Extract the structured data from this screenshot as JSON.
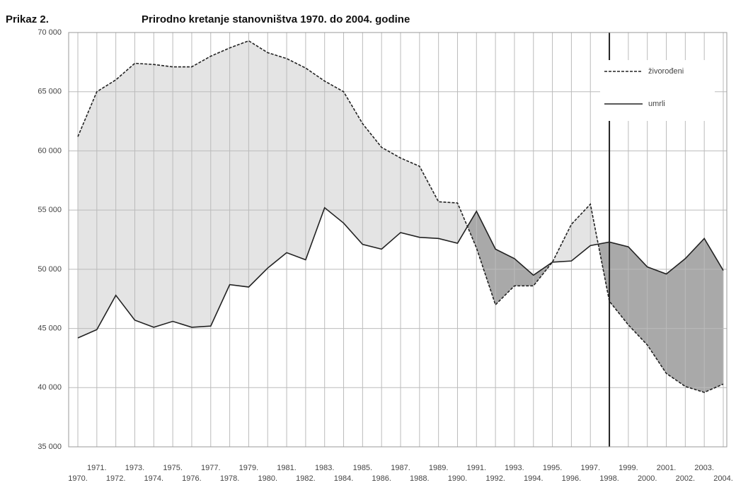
{
  "chart_data": {
    "type": "line",
    "label": "Prikaz 2.",
    "title": "Prirodno kretanje stanovništva 1970. do 2004. godine",
    "categories": [
      "1970.",
      "1971.",
      "1972.",
      "1973.",
      "1974.",
      "1975.",
      "1976.",
      "1977.",
      "1978.",
      "1979.",
      "1980.",
      "1981.",
      "1982.",
      "1983.",
      "1984.",
      "1985.",
      "1986.",
      "1987.",
      "1988.",
      "1989.",
      "1990.",
      "1991.",
      "1992.",
      "1993.",
      "1994.",
      "1995.",
      "1996.",
      "1997.",
      "1998.",
      "1999.",
      "2000.",
      "2001.",
      "2002.",
      "2003.",
      "2004."
    ],
    "series": [
      {
        "name": "živorođeni",
        "color": "#222222",
        "dash": true,
        "values": [
          61200,
          65000,
          66000,
          67400,
          67300,
          67100,
          67100,
          68000,
          68700,
          69300,
          68300,
          67800,
          67000,
          65900,
          65000,
          62300,
          60300,
          59400,
          58700,
          55700,
          55600,
          51800,
          47000,
          48600,
          48600,
          50600,
          53800,
          55500,
          47300,
          45300,
          43600,
          41200,
          40100,
          39600,
          40300
        ]
      },
      {
        "name": "umrli",
        "color": "#222222",
        "dash": false,
        "values": [
          44200,
          44900,
          47800,
          45700,
          45100,
          45600,
          45100,
          45200,
          48700,
          48500,
          50100,
          51400,
          50800,
          55200,
          53900,
          52100,
          51700,
          53100,
          52700,
          52600,
          52200,
          54900,
          51700,
          50900,
          49500,
          50600,
          50700,
          52000,
          52300,
          51900,
          50200,
          49600,
          50900,
          52600,
          49900
        ]
      }
    ],
    "fill_colors": [
      "#e4e4e4",
      "#a9a9a9"
    ],
    "vline": "1998.",
    "ylim": [
      35000,
      70000
    ],
    "yticks": [
      {
        "value": 35000,
        "label": "35 000"
      },
      {
        "value": 40000,
        "label": "40 000"
      },
      {
        "value": 45000,
        "label": "45 000"
      },
      {
        "value": 50000,
        "label": "50 000"
      },
      {
        "value": 55000,
        "label": "55 000"
      },
      {
        "value": 60000,
        "label": "60 000"
      },
      {
        "value": 65000,
        "label": "65 000"
      },
      {
        "value": 70000,
        "label": "70 000"
      }
    ],
    "grid": true,
    "legend": "upper right"
  }
}
